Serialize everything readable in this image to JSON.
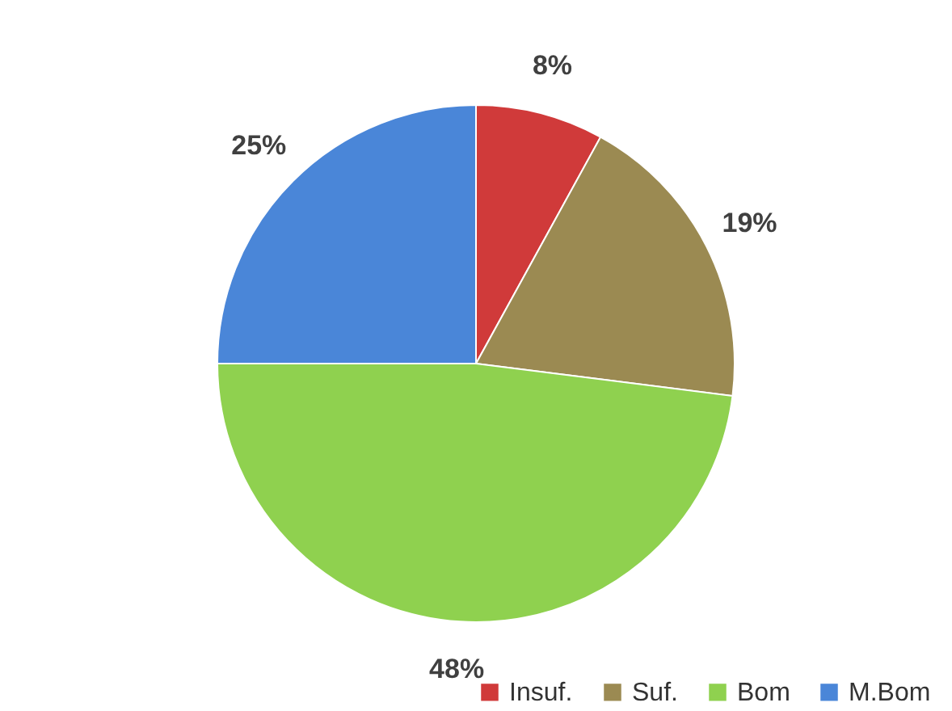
{
  "chart_data": {
    "type": "pie",
    "categories": [
      "Insuf.",
      "Suf.",
      "Bom",
      "M.Bom"
    ],
    "values": [
      8,
      19,
      48,
      25
    ],
    "colors": [
      "#d03a3a",
      "#9b8a52",
      "#8fd14f",
      "#4a86d8"
    ],
    "value_labels": [
      "8%",
      "19%",
      "48%",
      "25%"
    ],
    "legend": "bottom right"
  }
}
